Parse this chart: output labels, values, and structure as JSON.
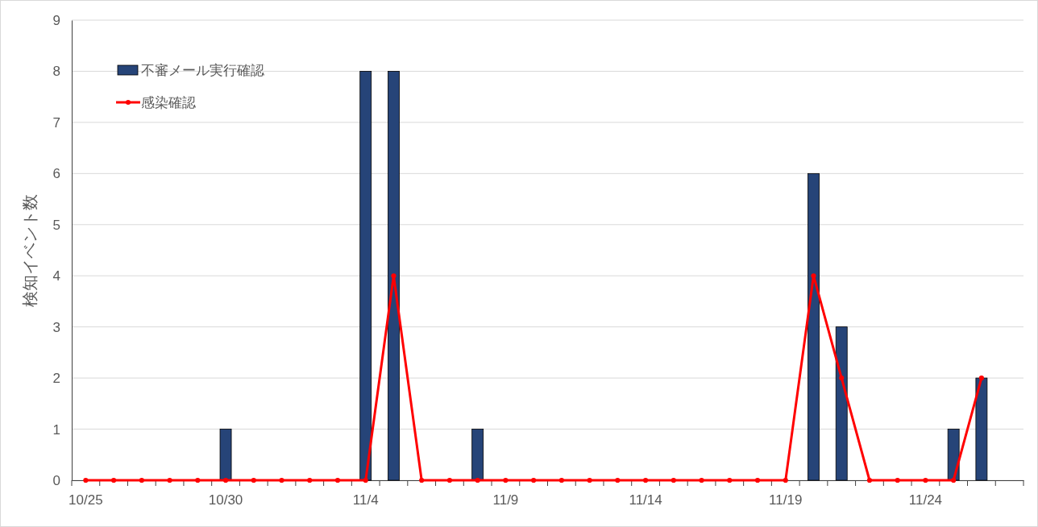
{
  "chart_data": {
    "type": "bar",
    "ylabel": "検知イベント数",
    "categories": [
      "10/25",
      null,
      null,
      null,
      null,
      "10/30",
      null,
      null,
      null,
      null,
      "11/4",
      null,
      null,
      null,
      null,
      "11/9",
      null,
      null,
      null,
      null,
      "11/14",
      null,
      null,
      null,
      null,
      "11/19",
      null,
      null,
      null,
      null,
      "11/24",
      null,
      null,
      null
    ],
    "series": [
      {
        "name": "不審メール実行確認",
        "color": "#264478",
        "values": [
          0,
          0,
          0,
          0,
          0,
          1,
          0,
          0,
          0,
          0,
          8,
          8,
          0,
          0,
          1,
          0,
          0,
          0,
          0,
          0,
          0,
          0,
          0,
          0,
          0,
          0,
          6,
          3,
          0,
          0,
          0,
          1,
          2,
          null
        ]
      },
      {
        "name": "感染確認",
        "type": "line",
        "color": "#ff0000",
        "marker": "circle",
        "line_style": "solid",
        "values": [
          0,
          0,
          0,
          0,
          0,
          0,
          0,
          0,
          0,
          0,
          0,
          4,
          0,
          0,
          0,
          0,
          0,
          0,
          0,
          0,
          0,
          0,
          0,
          0,
          0,
          0,
          4,
          2,
          0,
          0,
          0,
          0,
          2,
          null
        ]
      }
    ],
    "ylim": [
      0,
      9
    ],
    "yticks": [
      0,
      1,
      2,
      3,
      4,
      5,
      6,
      7,
      8,
      9
    ],
    "grid": "y",
    "legend": "top left"
  }
}
